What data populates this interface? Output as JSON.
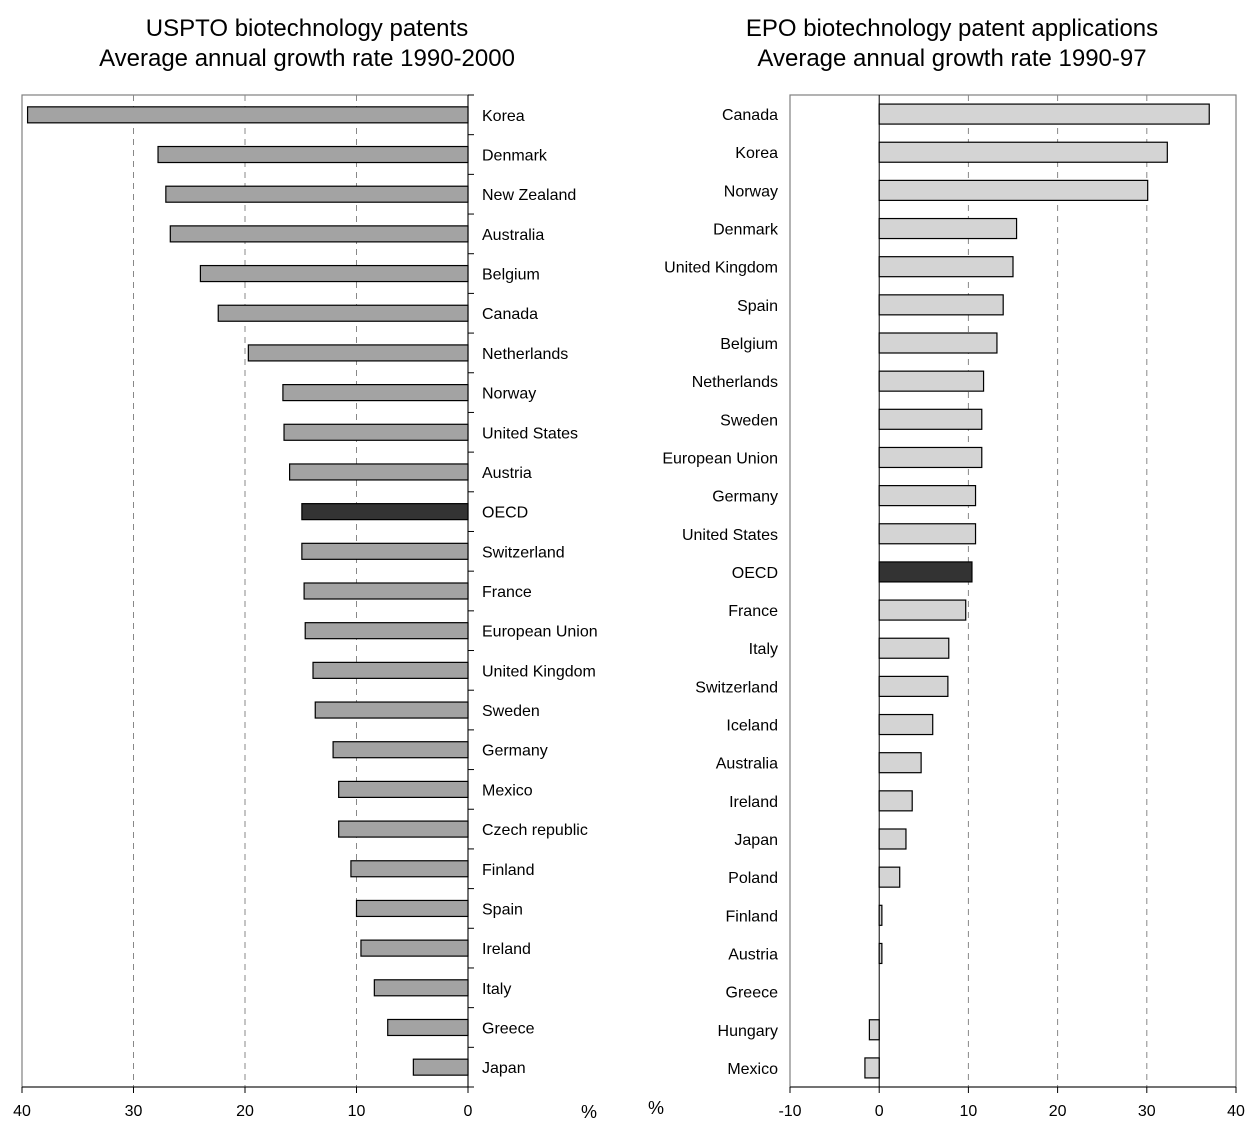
{
  "chart_data": [
    {
      "type": "bar",
      "orientation": "horizontal",
      "title": "USPTO biotechnology patents",
      "subtitle": "Average annual growth rate 1990-2000",
      "unit": "%",
      "axis_reversed": true,
      "xlim": [
        0,
        40
      ],
      "ticks": [
        40,
        30,
        20,
        10,
        0
      ],
      "grid": "vertical dashed at 10, 20, 30",
      "categories": [
        "Korea",
        "Denmark",
        "New Zealand",
        "Australia",
        "Belgium",
        "Canada",
        "Netherlands",
        "Norway",
        "United States",
        "Austria",
        "OECD",
        "Switzerland",
        "France",
        "European Union",
        "United Kingdom",
        "Sweden",
        "Germany",
        "Mexico",
        "Czech republic",
        "Finland",
        "Spain",
        "Ireland",
        "Italy",
        "Greece",
        "Japan"
      ],
      "values": [
        39.5,
        27.8,
        27.1,
        26.7,
        24.0,
        22.4,
        19.7,
        16.6,
        16.5,
        16.0,
        14.9,
        14.9,
        14.7,
        14.6,
        13.9,
        13.7,
        12.1,
        11.6,
        11.6,
        10.5,
        10.0,
        9.6,
        8.4,
        7.2,
        4.9
      ],
      "highlight": "OECD",
      "colors": {
        "bar": "#a3a3a3",
        "highlight": "#333333",
        "stroke": "#000000",
        "grid": "#888888"
      }
    },
    {
      "type": "bar",
      "orientation": "horizontal",
      "title": "EPO biotechnology patent applications",
      "subtitle": "Average annual growth rate 1990-97",
      "unit": "%",
      "xlim": [
        -10,
        40
      ],
      "ticks": [
        -10,
        0,
        10,
        20,
        30,
        40
      ],
      "grid": "vertical dashed at 10, 20, 30",
      "categories": [
        "Canada",
        "Korea",
        "Norway",
        "Denmark",
        "United Kingdom",
        "Spain",
        "Belgium",
        "Netherlands",
        "Sweden",
        "European Union",
        "Germany",
        "United States",
        "OECD",
        "France",
        "Italy",
        "Switzerland",
        "Iceland",
        "Australia",
        "Ireland",
        "Japan",
        "Poland",
        "Finland",
        "Austria",
        "Greece",
        "Hungary",
        "Mexico"
      ],
      "values": [
        37.0,
        32.3,
        30.1,
        15.4,
        15.0,
        13.9,
        13.2,
        11.7,
        11.5,
        11.5,
        10.8,
        10.8,
        10.4,
        9.7,
        7.8,
        7.7,
        6.0,
        4.7,
        3.7,
        3.0,
        2.3,
        0.3,
        0.3,
        0.0,
        -1.1,
        -1.6
      ],
      "highlight": "OECD",
      "colors": {
        "bar": "#d4d4d4",
        "highlight": "#333333",
        "stroke": "#000000",
        "grid": "#888888"
      }
    }
  ]
}
